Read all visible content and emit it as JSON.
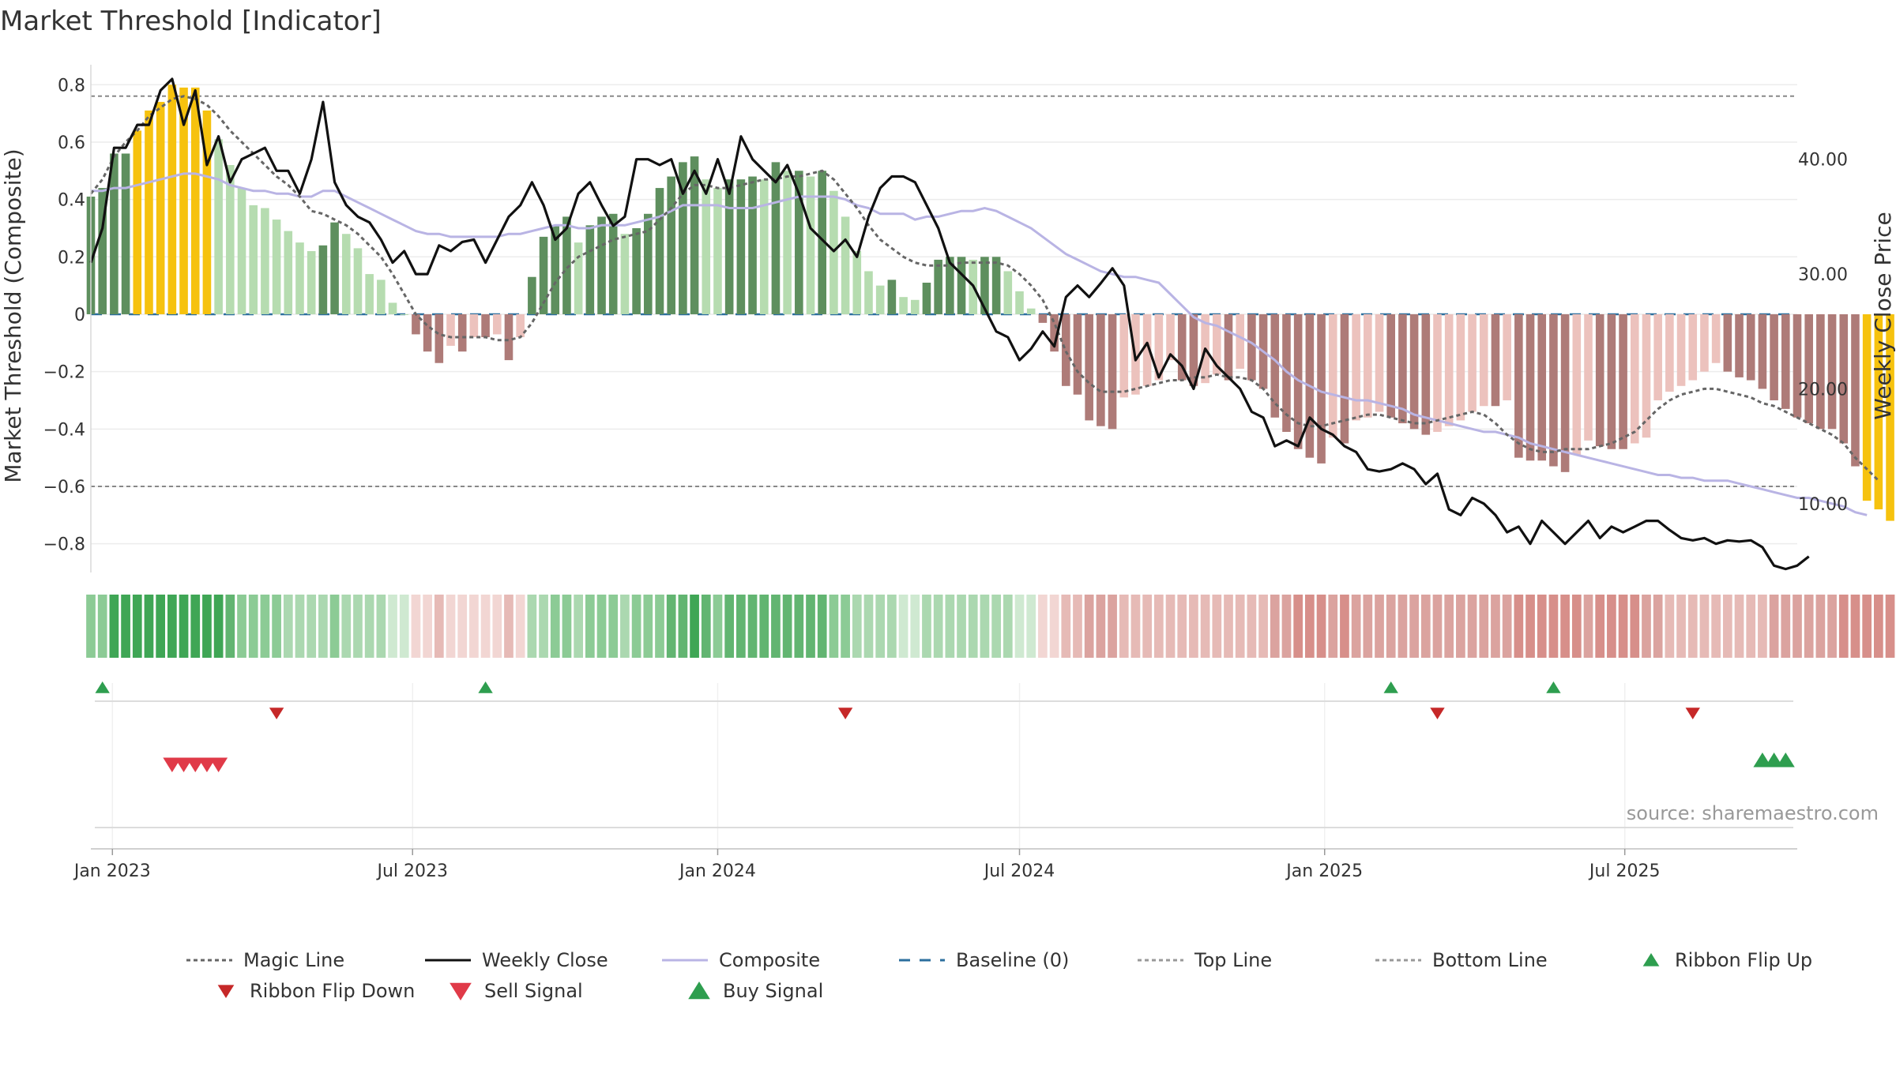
{
  "chart_data": {
    "type": "bar",
    "title": "Market Threshold [Indicator]",
    "ylabel_left": "Market Threshold (Composite)",
    "ylabel_right": "Weekly Close Price",
    "ylim_left": [
      -0.9,
      0.82
    ],
    "ylim_right": [
      4,
      47
    ],
    "yticks_left": [
      0.8,
      0.6,
      0.4,
      0.2,
      0,
      -0.2,
      -0.4,
      -0.6,
      -0.8
    ],
    "yticks_left_labels": [
      "0.8",
      "0.6",
      "0.4",
      "0.2",
      "0",
      "−0.2",
      "−0.4",
      "−0.6",
      "−0.8"
    ],
    "yticks_right": [
      40,
      30,
      20,
      10
    ],
    "yticks_right_labels": [
      "40.00",
      "30.00",
      "20.00",
      "10.00"
    ],
    "x_start": "2022-12-19",
    "x_end": "2025-10-13",
    "xticks": [
      {
        "date": "2023-01-01",
        "label": "Jan 2023"
      },
      {
        "date": "2023-07-01",
        "label": "Jul 2023"
      },
      {
        "date": "2024-01-01",
        "label": "Jan 2024"
      },
      {
        "date": "2024-07-01",
        "label": "Jul 2024"
      },
      {
        "date": "2025-01-01",
        "label": "Jan 2025"
      },
      {
        "date": "2025-07-01",
        "label": "Jul 2025"
      }
    ],
    "top_line": 0.76,
    "bottom_line": -0.6,
    "baseline": 0,
    "grid": true,
    "source": "source: sharemaestro.com",
    "legend": [
      {
        "label": "Magic Line",
        "kind": "dotted",
        "color": "#666666"
      },
      {
        "label": "Weekly Close",
        "kind": "solid",
        "color": "#111111"
      },
      {
        "label": "Composite",
        "kind": "solid",
        "color": "#b9b4e4"
      },
      {
        "label": "Baseline (0)",
        "kind": "dashed",
        "color": "#2c6f9e"
      },
      {
        "label": "Top Line",
        "kind": "dotted",
        "color": "#999999"
      },
      {
        "label": "Bottom Line",
        "kind": "dotted",
        "color": "#999999"
      },
      {
        "label": "Ribbon Flip Up",
        "kind": "tri-up",
        "color": "#2e9e4f"
      },
      {
        "label": "Ribbon Flip Down",
        "kind": "tri-down",
        "color": "#c62828"
      },
      {
        "label": "Sell Signal",
        "kind": "tri-down-big",
        "color": "#e03a48"
      },
      {
        "label": "Buy Signal",
        "kind": "tri-up-big",
        "color": "#2e9e4f"
      }
    ],
    "colors": {
      "strong_up": "#5e8f5e",
      "weak_up": "#b6dcb0",
      "strong_down": "#ae7b78",
      "weak_down": "#ecc2bd",
      "extreme": "#f6c20e"
    },
    "series": [
      {
        "name": "Market Threshold",
        "values": [
          0.41,
          0.44,
          0.56,
          0.56,
          0.64,
          0.71,
          0.74,
          0.8,
          0.79,
          0.79,
          0.71,
          0.61,
          0.52,
          0.44,
          0.38,
          0.37,
          0.33,
          0.29,
          0.25,
          0.22,
          0.24,
          0.32,
          0.28,
          0.23,
          0.14,
          0.12,
          0.04,
          0.0,
          -0.07,
          -0.13,
          -0.17,
          -0.11,
          -0.13,
          -0.08,
          -0.08,
          -0.07,
          -0.16,
          -0.08,
          0.13,
          0.27,
          0.31,
          0.34,
          0.25,
          0.31,
          0.34,
          0.35,
          0.28,
          0.3,
          0.35,
          0.44,
          0.48,
          0.53,
          0.55,
          0.47,
          0.44,
          0.47,
          0.47,
          0.48,
          0.47,
          0.53,
          0.5,
          0.5,
          0.48,
          0.5,
          0.43,
          0.34,
          0.22,
          0.15,
          0.1,
          0.12,
          0.06,
          0.05,
          0.11,
          0.19,
          0.2,
          0.2,
          0.19,
          0.2,
          0.2,
          0.15,
          0.08,
          0.02,
          -0.03,
          -0.13,
          -0.25,
          -0.28,
          -0.37,
          -0.39,
          -0.4,
          -0.29,
          -0.28,
          -0.25,
          -0.23,
          -0.16,
          -0.23,
          -0.25,
          -0.24,
          -0.21,
          -0.23,
          -0.19,
          -0.23,
          -0.26,
          -0.36,
          -0.41,
          -0.47,
          -0.5,
          -0.52,
          -0.43,
          -0.45,
          -0.37,
          -0.36,
          -0.34,
          -0.36,
          -0.38,
          -0.4,
          -0.42,
          -0.41,
          -0.39,
          -0.37,
          -0.34,
          -0.32,
          -0.32,
          -0.3,
          -0.5,
          -0.51,
          -0.51,
          -0.53,
          -0.55,
          -0.49,
          -0.44,
          -0.46,
          -0.47,
          -0.47,
          -0.45,
          -0.43,
          -0.3,
          -0.27,
          -0.25,
          -0.23,
          -0.2,
          -0.17,
          -0.2,
          -0.22,
          -0.23,
          -0.26,
          -0.3,
          -0.33,
          -0.36,
          -0.38,
          -0.4,
          -0.4,
          -0.45,
          -0.53,
          -0.65,
          -0.68,
          -0.72
        ]
      },
      {
        "name": "Weekly Close",
        "values": [
          31,
          34,
          41,
          41,
          43,
          43,
          46,
          47,
          43,
          46,
          39.5,
          42,
          38,
          40,
          40.5,
          41,
          39,
          39,
          37,
          40,
          45,
          38,
          36,
          35,
          34.5,
          33,
          31,
          32,
          30,
          30,
          32.5,
          32,
          32.8,
          33,
          31,
          33,
          35,
          36,
          38,
          36,
          33,
          34,
          37,
          38,
          36,
          34.2,
          35,
          40,
          40,
          39.5,
          40,
          37,
          39,
          37,
          40,
          37,
          42,
          40,
          39,
          38,
          39.5,
          37,
          34,
          33,
          32,
          33,
          31.5,
          35,
          37.5,
          38.5,
          38.5,
          38,
          36,
          34,
          31,
          30,
          29,
          27,
          25,
          24.5,
          22.5,
          23.5,
          25,
          23.7,
          28,
          29,
          28,
          29.2,
          30.5,
          29,
          22.5,
          24,
          21,
          23,
          22,
          20,
          23.5,
          22,
          21,
          20,
          18,
          17.5,
          15,
          15.5,
          15,
          17.5,
          16.5,
          16,
          15,
          14.5,
          13,
          12.8,
          13,
          13.5,
          13,
          11.7,
          12.6,
          9.5,
          9,
          10.5,
          10,
          9,
          7.5,
          8,
          6.5,
          8.5,
          7.5,
          6.5,
          7.5,
          8.5,
          7,
          8,
          7.5,
          8,
          8.5,
          8.5,
          7.7,
          7,
          6.8,
          7,
          6.5,
          6.8,
          6.7,
          6.8,
          6.2,
          4.6,
          4.3,
          4.6,
          5.4
        ]
      },
      {
        "name": "Composite",
        "values": [
          0.43,
          0.43,
          0.44,
          0.44,
          0.45,
          0.46,
          0.47,
          0.48,
          0.49,
          0.49,
          0.48,
          0.47,
          0.45,
          0.44,
          0.43,
          0.43,
          0.42,
          0.42,
          0.41,
          0.41,
          0.43,
          0.43,
          0.41,
          0.39,
          0.37,
          0.35,
          0.33,
          0.31,
          0.29,
          0.28,
          0.28,
          0.27,
          0.27,
          0.27,
          0.27,
          0.27,
          0.28,
          0.28,
          0.29,
          0.3,
          0.31,
          0.31,
          0.3,
          0.3,
          0.31,
          0.31,
          0.31,
          0.32,
          0.33,
          0.34,
          0.36,
          0.38,
          0.38,
          0.38,
          0.38,
          0.37,
          0.37,
          0.37,
          0.38,
          0.39,
          0.4,
          0.41,
          0.41,
          0.41,
          0.41,
          0.4,
          0.38,
          0.37,
          0.35,
          0.35,
          0.35,
          0.33,
          0.34,
          0.34,
          0.35,
          0.36,
          0.36,
          0.37,
          0.36,
          0.34,
          0.32,
          0.3,
          0.27,
          0.24,
          0.21,
          0.19,
          0.17,
          0.15,
          0.14,
          0.13,
          0.13,
          0.12,
          0.11,
          0.07,
          0.03,
          -0.01,
          -0.03,
          -0.04,
          -0.06,
          -0.08,
          -0.1,
          -0.13,
          -0.16,
          -0.2,
          -0.23,
          -0.25,
          -0.27,
          -0.28,
          -0.29,
          -0.3,
          -0.3,
          -0.31,
          -0.32,
          -0.33,
          -0.35,
          -0.36,
          -0.37,
          -0.38,
          -0.39,
          -0.4,
          -0.41,
          -0.41,
          -0.42,
          -0.43,
          -0.45,
          -0.46,
          -0.47,
          -0.48,
          -0.49,
          -0.5,
          -0.51,
          -0.52,
          -0.53,
          -0.54,
          -0.55,
          -0.56,
          -0.56,
          -0.57,
          -0.57,
          -0.58,
          -0.58,
          -0.58,
          -0.59,
          -0.6,
          -0.61,
          -0.62,
          -0.63,
          -0.64,
          -0.64,
          -0.65,
          -0.66,
          -0.67,
          -0.69,
          -0.7
        ]
      },
      {
        "name": "Magic Line",
        "values": [
          0.42,
          0.47,
          0.55,
          0.6,
          0.64,
          0.69,
          0.72,
          0.75,
          0.76,
          0.75,
          0.73,
          0.69,
          0.64,
          0.6,
          0.56,
          0.52,
          0.48,
          0.45,
          0.41,
          0.36,
          0.35,
          0.33,
          0.31,
          0.28,
          0.24,
          0.2,
          0.14,
          0.07,
          0.0,
          -0.04,
          -0.07,
          -0.08,
          -0.08,
          -0.08,
          -0.08,
          -0.09,
          -0.09,
          -0.08,
          -0.03,
          0.04,
          0.11,
          0.16,
          0.2,
          0.22,
          0.24,
          0.26,
          0.27,
          0.28,
          0.29,
          0.33,
          0.37,
          0.42,
          0.45,
          0.45,
          0.44,
          0.44,
          0.45,
          0.46,
          0.47,
          0.47,
          0.48,
          0.48,
          0.49,
          0.5,
          0.47,
          0.42,
          0.37,
          0.31,
          0.26,
          0.23,
          0.2,
          0.18,
          0.17,
          0.17,
          0.17,
          0.18,
          0.18,
          0.18,
          0.18,
          0.17,
          0.14,
          0.1,
          0.05,
          -0.03,
          -0.13,
          -0.2,
          -0.24,
          -0.27,
          -0.27,
          -0.27,
          -0.26,
          -0.25,
          -0.24,
          -0.23,
          -0.23,
          -0.22,
          -0.22,
          -0.21,
          -0.22,
          -0.22,
          -0.23,
          -0.26,
          -0.31,
          -0.35,
          -0.38,
          -0.39,
          -0.39,
          -0.38,
          -0.37,
          -0.36,
          -0.35,
          -0.35,
          -0.36,
          -0.37,
          -0.38,
          -0.38,
          -0.37,
          -0.36,
          -0.35,
          -0.34,
          -0.35,
          -0.38,
          -0.42,
          -0.45,
          -0.47,
          -0.48,
          -0.48,
          -0.47,
          -0.47,
          -0.47,
          -0.46,
          -0.45,
          -0.43,
          -0.41,
          -0.37,
          -0.33,
          -0.3,
          -0.28,
          -0.27,
          -0.26,
          -0.26,
          -0.27,
          -0.28,
          -0.29,
          -0.31,
          -0.32,
          -0.34,
          -0.36,
          -0.38,
          -0.4,
          -0.42,
          -0.45,
          -0.5,
          -0.54,
          -0.58
        ]
      }
    ],
    "ribbon_flip_up": [
      "2022-12-26",
      "2023-08-14",
      "2025-02-10",
      "2025-05-19"
    ],
    "ribbon_flip_down": [
      "2023-04-10",
      "2024-03-18",
      "2025-03-10",
      "2025-08-11"
    ],
    "sell_signal": [
      "2023-02-06",
      "2023-02-13",
      "2023-02-20",
      "2023-02-27",
      "2023-03-06"
    ],
    "buy_signal": [
      "2025-09-22",
      "2025-09-29",
      "2025-10-06"
    ]
  }
}
